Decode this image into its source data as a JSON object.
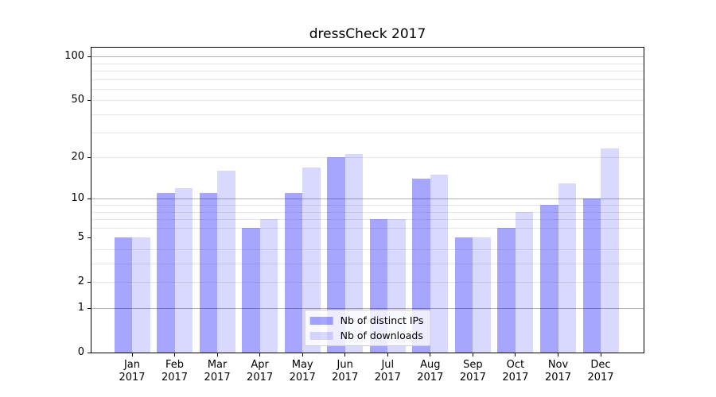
{
  "title": "dressCheck 2017",
  "chart_data": {
    "type": "bar",
    "title": "dressCheck 2017",
    "categories": [
      "Jan",
      "Feb",
      "Mar",
      "Apr",
      "May",
      "Jun",
      "Jul",
      "Aug",
      "Sep",
      "Oct",
      "Nov",
      "Dec"
    ],
    "category_year": "2017",
    "series": [
      {
        "name": "Nb of distinct IPs",
        "color": "#0000ff",
        "alpha": 0.35,
        "values": [
          5,
          11,
          11,
          6,
          11,
          20,
          7,
          14,
          5,
          6,
          9,
          10
        ]
      },
      {
        "name": "Nb of downloads",
        "color": "#0000ff",
        "alpha": 0.15,
        "values": [
          5,
          12,
          16,
          7,
          17,
          21,
          7,
          15,
          5,
          8,
          13,
          23
        ]
      }
    ],
    "xlabel": "",
    "ylabel": "",
    "yscale": "log1p",
    "ylim": [
      0,
      115
    ],
    "ytick_labels": [
      0,
      1,
      2,
      5,
      10,
      20,
      50,
      100
    ],
    "major_gridlines": [
      1,
      10,
      100
    ],
    "minor_gridlines": [
      2,
      3,
      4,
      6,
      7,
      8,
      9,
      20,
      30,
      40,
      50,
      60,
      70,
      80,
      90
    ],
    "grid": true,
    "legend_position": "lower center",
    "colors": {
      "bar_distinct_ips_rendered": "#a6a6ff",
      "bar_downloads_rendered": "#d9d9ff",
      "grid_major": "#b0b0b0",
      "grid_minor": "#e6e6e6",
      "spine": "#000000",
      "text": "#000000"
    }
  }
}
